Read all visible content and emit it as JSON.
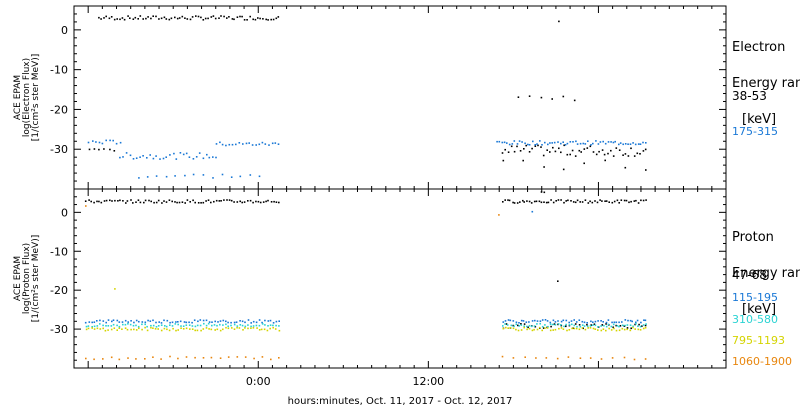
{
  "chart_data": [
    {
      "type": "scatter",
      "ylabel_lines": [
        "ACE EPAM",
        "log(Electron Flux)",
        "[1/(cm²s ster MeV)]"
      ],
      "ylim": [
        -40,
        6
      ],
      "yticks": [
        0,
        -10,
        -20,
        -30
      ],
      "legend_title_lines": [
        "Electron",
        "Energy ran",
        "[keV]"
      ],
      "series": [
        {
          "name": "38-53",
          "color": "#000000",
          "segments": [
            {
              "x": [
                -11.3,
                1.4
              ],
              "y": 3.2,
              "n": 70,
              "jitter": 0.5
            },
            {
              "x": [
                18.3,
                22.3
              ],
              "y": -17.0,
              "n": 6,
              "jitter": 0.6
            },
            {
              "x": [
                17.2,
                27.3
              ],
              "y": -30.2,
              "n": 50,
              "jitter": 1.4
            },
            {
              "x": [
                17.2,
                27.3
              ],
              "y": -34.0,
              "n": 8,
              "jitter": 1.5
            },
            {
              "x": [
                -12.0,
                -10.2
              ],
              "y": -30.0,
              "n": 6,
              "jitter": 0.6
            },
            {
              "x": [
                21.0,
                21.3
              ],
              "y": 2.3,
              "n": 1,
              "jitter": 0.2
            }
          ]
        },
        {
          "name": "175-315",
          "color": "#1a78d6",
          "segments": [
            {
              "x": [
                -12.0,
                -9.8
              ],
              "y": -28.0,
              "n": 10,
              "jitter": 0.5
            },
            {
              "x": [
                -9.8,
                -3.0
              ],
              "y": -31.5,
              "n": 30,
              "jitter": 0.8
            },
            {
              "x": [
                -3.0,
                1.4
              ],
              "y": -28.5,
              "n": 20,
              "jitter": 0.5
            },
            {
              "x": [
                -8.5,
                0.0
              ],
              "y": -36.5,
              "n": 14,
              "jitter": 0.6
            },
            {
              "x": [
                16.8,
                27.3
              ],
              "y": -28.2,
              "n": 60,
              "jitter": 0.5
            }
          ]
        }
      ]
    },
    {
      "type": "scatter",
      "ylabel_lines": [
        "ACE EPAM",
        "log(Proton Flux)",
        "[1/(cm²s ster MeV)]"
      ],
      "ylim": [
        -40,
        6
      ],
      "yticks": [
        0,
        -10,
        -20,
        -30
      ],
      "legend_title_lines": [
        "Proton",
        "Energy ran",
        "[keV]"
      ],
      "series": [
        {
          "name": "47-68",
          "color": "#000000",
          "segments": [
            {
              "x": [
                -12.2,
                1.4
              ],
              "y": 3.0,
              "n": 75,
              "jitter": 0.4
            },
            {
              "x": [
                17.2,
                27.3
              ],
              "y": 3.0,
              "n": 60,
              "jitter": 0.4
            },
            {
              "x": [
                19.9,
                20.1
              ],
              "y": 5.2,
              "n": 2,
              "jitter": 0.3
            },
            {
              "x": [
                21.0,
                21.2
              ],
              "y": -17.5,
              "n": 1,
              "jitter": 0.2
            },
            {
              "x": [
                17.2,
                27.3
              ],
              "y": -29.0,
              "n": 40,
              "jitter": 0.6
            }
          ]
        },
        {
          "name": "115-195",
          "color": "#1a78d6",
          "segments": [
            {
              "x": [
                -12.2,
                1.4
              ],
              "y": -27.8,
              "n": 70,
              "jitter": 0.4
            },
            {
              "x": [
                17.2,
                27.3
              ],
              "y": -27.8,
              "n": 55,
              "jitter": 0.4
            },
            {
              "x": [
                19.2,
                19.4
              ],
              "y": 0.5,
              "n": 1,
              "jitter": 0.2
            }
          ]
        },
        {
          "name": "310-580",
          "color": "#2ad3d3",
          "segments": [
            {
              "x": [
                -12.2,
                1.4
              ],
              "y": -28.8,
              "n": 70,
              "jitter": 0.4
            },
            {
              "x": [
                17.2,
                27.3
              ],
              "y": -28.8,
              "n": 55,
              "jitter": 0.4
            }
          ]
        },
        {
          "name": "795-1193",
          "color": "#d4d400",
          "segments": [
            {
              "x": [
                -12.2,
                1.4
              ],
              "y": -29.8,
              "n": 70,
              "jitter": 0.4
            },
            {
              "x": [
                17.2,
                27.3
              ],
              "y": -29.8,
              "n": 55,
              "jitter": 0.4
            },
            {
              "x": [
                -10.3,
                -10.1
              ],
              "y": -19.5,
              "n": 1,
              "jitter": 0.2
            }
          ]
        },
        {
          "name": "1060-1900",
          "color": "#e8860e",
          "segments": [
            {
              "x": [
                -12.2,
                1.4
              ],
              "y": -37.2,
              "n": 24,
              "jitter": 0.4
            },
            {
              "x": [
                17.2,
                27.3
              ],
              "y": -37.2,
              "n": 14,
              "jitter": 0.4
            },
            {
              "x": [
                16.8,
                17.0
              ],
              "y": -0.3,
              "n": 1,
              "jitter": 0.2
            },
            {
              "x": [
                -12.3,
                -12.1
              ],
              "y": 1.8,
              "n": 1,
              "jitter": 0.2
            }
          ]
        }
      ]
    }
  ],
  "x_axis": {
    "range_hours": [
      -13.0,
      33.0
    ],
    "major_ticks": [
      0,
      12
    ],
    "major_labels": [
      "0:00",
      "12:00"
    ],
    "minor_step_hours": 1,
    "xlabel": "hours:minutes, Oct. 11, 2017 - Oct. 12, 2017"
  }
}
